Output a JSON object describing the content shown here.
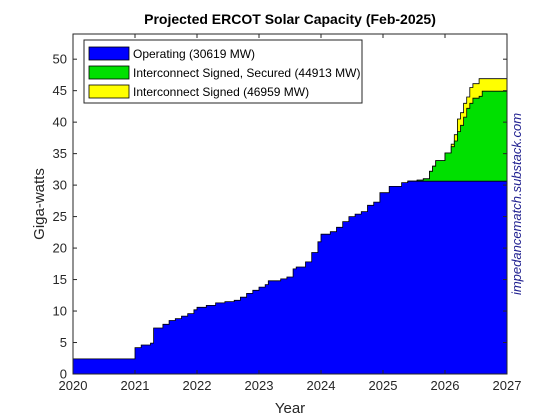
{
  "chart_data": {
    "type": "area",
    "title": "Projected ERCOT Solar Capacity (Feb-2025)",
    "xlabel": "Year",
    "ylabel": "Giga-watts",
    "xlim": [
      2020,
      2027
    ],
    "ylim": [
      0,
      54
    ],
    "x_ticks": [
      2020,
      2021,
      2022,
      2023,
      2024,
      2025,
      2026,
      2027
    ],
    "y_ticks": [
      0,
      5,
      10,
      15,
      20,
      25,
      30,
      35,
      40,
      45,
      50
    ],
    "grid": false,
    "stacked_step": true,
    "legend_position": "top-left",
    "watermark": "impedancematch.substack.com",
    "series": [
      {
        "name": "Operating (30619 MW)",
        "color": "#0000ff",
        "points": [
          [
            2020.0,
            2.4
          ],
          [
            2021.0,
            4.2
          ],
          [
            2021.1,
            4.6
          ],
          [
            2021.25,
            4.9
          ],
          [
            2021.3,
            7.3
          ],
          [
            2021.45,
            7.9
          ],
          [
            2021.55,
            8.5
          ],
          [
            2021.65,
            8.8
          ],
          [
            2021.75,
            9.2
          ],
          [
            2021.85,
            9.6
          ],
          [
            2021.95,
            10.2
          ],
          [
            2022.0,
            10.6
          ],
          [
            2022.15,
            10.9
          ],
          [
            2022.3,
            11.3
          ],
          [
            2022.45,
            11.5
          ],
          [
            2022.6,
            11.7
          ],
          [
            2022.7,
            12.2
          ],
          [
            2022.8,
            12.8
          ],
          [
            2022.9,
            13.3
          ],
          [
            2023.0,
            13.8
          ],
          [
            2023.1,
            14.2
          ],
          [
            2023.15,
            14.8
          ],
          [
            2023.35,
            15.1
          ],
          [
            2023.45,
            15.4
          ],
          [
            2023.55,
            16.7
          ],
          [
            2023.6,
            17.0
          ],
          [
            2023.75,
            17.8
          ],
          [
            2023.85,
            19.3
          ],
          [
            2023.95,
            21.0
          ],
          [
            2024.0,
            22.2
          ],
          [
            2024.15,
            22.6
          ],
          [
            2024.25,
            23.3
          ],
          [
            2024.35,
            24.2
          ],
          [
            2024.45,
            25.0
          ],
          [
            2024.55,
            25.4
          ],
          [
            2024.65,
            25.8
          ],
          [
            2024.75,
            26.8
          ],
          [
            2024.85,
            27.3
          ],
          [
            2024.95,
            28.8
          ],
          [
            2025.1,
            29.8
          ],
          [
            2025.3,
            30.4
          ],
          [
            2025.4,
            30.62
          ],
          [
            2027.0,
            30.62
          ]
        ]
      },
      {
        "name": "Interconnect Signed, Secured (44913 MW)",
        "color": "#00e000",
        "points": [
          [
            2025.4,
            30.62
          ],
          [
            2025.55,
            30.8
          ],
          [
            2025.65,
            31.0
          ],
          [
            2025.75,
            32.2
          ],
          [
            2025.8,
            33.0
          ],
          [
            2025.85,
            33.9
          ],
          [
            2026.0,
            35.1
          ],
          [
            2026.1,
            36.1
          ],
          [
            2026.15,
            37.0
          ],
          [
            2026.2,
            38.5
          ],
          [
            2026.25,
            39.5
          ],
          [
            2026.3,
            40.8
          ],
          [
            2026.35,
            42.2
          ],
          [
            2026.4,
            43.0
          ],
          [
            2026.45,
            43.8
          ],
          [
            2026.55,
            44.1
          ],
          [
            2026.6,
            44.91
          ],
          [
            2027.0,
            44.91
          ]
        ]
      },
      {
        "name": "Interconnect Signed (46959 MW)",
        "color": "#ffff00",
        "points": [
          [
            2025.4,
            30.62
          ],
          [
            2025.55,
            30.8
          ],
          [
            2025.65,
            31.0
          ],
          [
            2025.75,
            32.2
          ],
          [
            2025.8,
            33.0
          ],
          [
            2025.85,
            33.9
          ],
          [
            2026.0,
            35.1
          ],
          [
            2026.1,
            36.5
          ],
          [
            2026.15,
            38.0
          ],
          [
            2026.2,
            40.5
          ],
          [
            2026.25,
            41.5
          ],
          [
            2026.3,
            43.0
          ],
          [
            2026.35,
            44.0
          ],
          [
            2026.4,
            45.5
          ],
          [
            2026.45,
            46.1
          ],
          [
            2026.55,
            46.9
          ],
          [
            2027.0,
            46.96
          ]
        ]
      }
    ]
  }
}
